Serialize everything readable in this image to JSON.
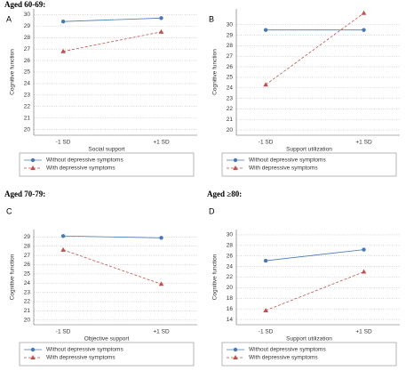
{
  "chart_data": [
    {
      "type": "line",
      "heading": "Aged 60-69:",
      "label": "A",
      "xlabel": "Social support",
      "ylabel": "Cognitive function",
      "categories": [
        "-1 SD",
        "+1 SD"
      ],
      "ylim": [
        19.5,
        30.5
      ],
      "yticks": [
        20,
        21,
        22,
        23,
        24,
        25,
        26,
        27,
        28,
        29,
        30
      ],
      "grid": true,
      "series": [
        {
          "name": "Without depressive symptoms",
          "color": "#4a78b5",
          "marker": "circle",
          "dashed": false,
          "values": [
            29.4,
            29.7
          ]
        },
        {
          "name": "With depressive symptoms",
          "color": "#c0504d",
          "marker": "triangle",
          "dashed": true,
          "values": [
            26.8,
            28.5
          ]
        }
      ]
    },
    {
      "type": "line",
      "label": "B",
      "xlabel": "Support utilization",
      "ylabel": "Cognitive function",
      "categories": [
        "-1 SD",
        "+1 SD"
      ],
      "ylim": [
        19.5,
        31.5
      ],
      "yticks": [
        20,
        21,
        22,
        23,
        24,
        25,
        26,
        27,
        28,
        29,
        30
      ],
      "grid": true,
      "series": [
        {
          "name": "Without depressive symptoms",
          "color": "#4a78b5",
          "marker": "circle",
          "dashed": false,
          "values": [
            29.5,
            29.5
          ]
        },
        {
          "name": "With depressive symptoms",
          "color": "#c0504d",
          "marker": "triangle",
          "dashed": true,
          "values": [
            24.3,
            31.1
          ]
        }
      ]
    },
    {
      "type": "line",
      "heading": "Aged 70-79:",
      "label": "C",
      "xlabel": "Objective support",
      "ylabel": "Cognitive function",
      "categories": [
        "-1 SD",
        "+1 SD"
      ],
      "ylim": [
        19.5,
        29.8
      ],
      "yticks": [
        20,
        21,
        22,
        23,
        24,
        25,
        26,
        27,
        28,
        29
      ],
      "grid": true,
      "series": [
        {
          "name": "Without depressive symptoms",
          "color": "#4a78b5",
          "marker": "circle",
          "dashed": false,
          "values": [
            29.1,
            28.9
          ]
        },
        {
          "name": "With depressive symptoms",
          "color": "#c0504d",
          "marker": "triangle",
          "dashed": true,
          "values": [
            27.6,
            23.9
          ]
        }
      ]
    },
    {
      "type": "line",
      "heading": "Aged ≥80:",
      "label": "D",
      "xlabel": "Support utilization",
      "ylabel": "Cognitive function",
      "categories": [
        "-1 SD",
        "+1 SD"
      ],
      "ylim": [
        13,
        31
      ],
      "yticks": [
        14,
        16,
        18,
        20,
        22,
        24,
        26,
        28,
        30
      ],
      "grid": true,
      "series": [
        {
          "name": "Without depressive symptoms",
          "color": "#4a78b5",
          "marker": "circle",
          "dashed": false,
          "values": [
            25.1,
            27.2
          ]
        },
        {
          "name": "With depressive symptoms",
          "color": "#c0504d",
          "marker": "triangle",
          "dashed": true,
          "values": [
            15.7,
            23.0
          ]
        }
      ]
    }
  ]
}
